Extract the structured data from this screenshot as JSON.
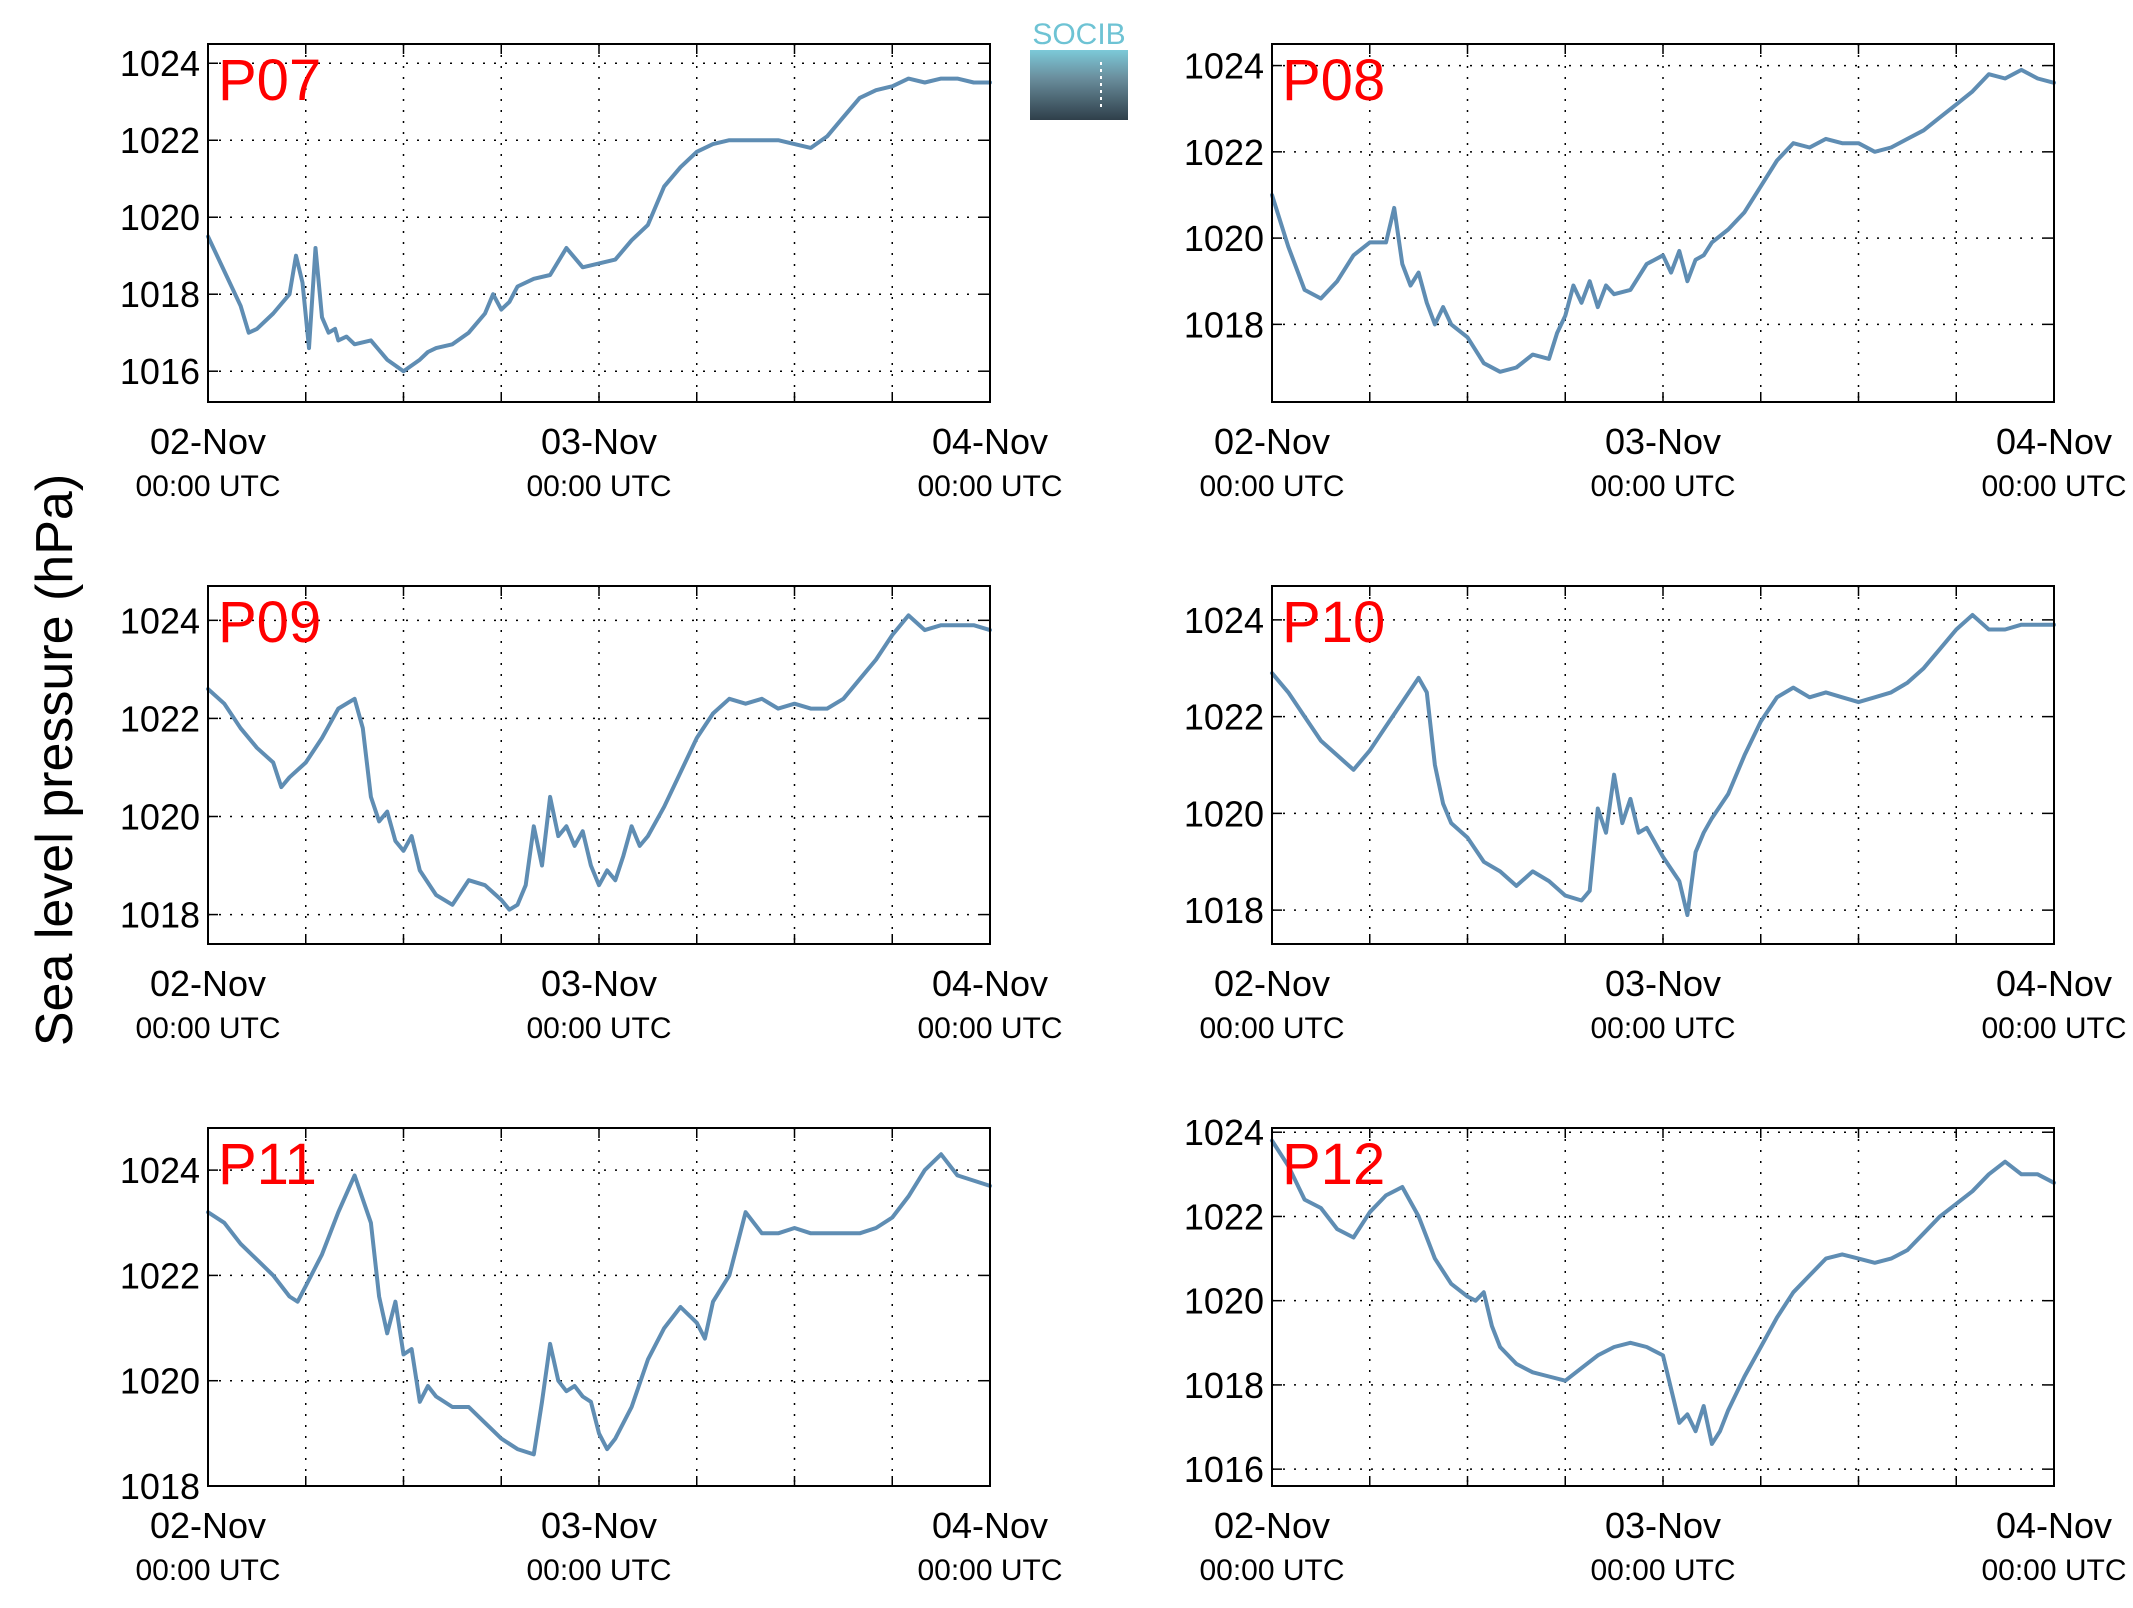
{
  "figure": {
    "ylabel": "Sea level pressure (hPa)",
    "logo_text": "SOCIB",
    "colors": {
      "line": "#5f8db3",
      "panel_label": "#ff0000",
      "axis": "#000000",
      "grid": "#000000",
      "logo_top": "#6ec3d4",
      "logo_bottom": "#2f3f4a"
    }
  },
  "chart_data": [
    {
      "type": "line",
      "panel_label": "P07",
      "x_ticks": [
        {
          "date": "02-Nov",
          "time": "00:00 UTC"
        },
        {
          "date": "03-Nov",
          "time": "00:00 UTC"
        },
        {
          "date": "04-Nov",
          "time": "00:00 UTC"
        }
      ],
      "xlim_hours": [
        0,
        48
      ],
      "y_ticks": [
        1016,
        1018,
        1020,
        1022,
        1024
      ],
      "ylim": [
        1015.2,
        1024.5
      ],
      "grid": true,
      "x_hours": [
        0,
        1,
        2,
        2.5,
        3,
        4,
        5,
        5.4,
        5.8,
        6.2,
        6.6,
        7,
        7.4,
        7.8,
        8,
        8.5,
        9,
        10,
        11,
        12,
        13,
        13.5,
        14,
        15,
        16,
        17,
        17.5,
        18,
        18.5,
        19,
        20,
        21,
        22,
        23,
        24,
        25,
        26,
        27,
        28,
        29,
        30,
        31,
        32,
        33,
        34,
        35,
        36,
        37,
        38,
        39,
        40,
        41,
        42,
        43,
        44,
        45,
        46,
        47,
        48
      ],
      "values": [
        1019.5,
        1018.6,
        1017.7,
        1017.0,
        1017.1,
        1017.5,
        1018.0,
        1019.0,
        1018.3,
        1016.6,
        1019.2,
        1017.4,
        1017.0,
        1017.1,
        1016.8,
        1016.9,
        1016.7,
        1016.8,
        1016.3,
        1016.0,
        1016.3,
        1016.5,
        1016.6,
        1016.7,
        1017.0,
        1017.5,
        1018.0,
        1017.6,
        1017.8,
        1018.2,
        1018.4,
        1018.5,
        1019.2,
        1018.7,
        1018.8,
        1018.9,
        1019.4,
        1019.8,
        1020.8,
        1021.3,
        1021.7,
        1021.9,
        1022.0,
        1022.0,
        1022.0,
        1022.0,
        1021.9,
        1021.8,
        1022.1,
        1022.6,
        1023.1,
        1023.3,
        1023.4,
        1023.6,
        1023.5,
        1023.6,
        1023.6,
        1023.5,
        1023.5
      ]
    },
    {
      "type": "line",
      "panel_label": "P08",
      "x_ticks": [
        {
          "date": "02-Nov",
          "time": "00:00 UTC"
        },
        {
          "date": "03-Nov",
          "time": "00:00 UTC"
        },
        {
          "date": "04-Nov",
          "time": "00:00 UTC"
        }
      ],
      "xlim_hours": [
        0,
        48
      ],
      "y_ticks": [
        1018,
        1020,
        1022,
        1024
      ],
      "ylim": [
        1016.2,
        1024.5
      ],
      "grid": true,
      "x_hours": [
        0,
        1,
        2,
        3,
        4,
        5,
        6,
        7,
        7.5,
        8,
        8.5,
        9,
        9.5,
        10,
        10.5,
        11,
        12,
        13,
        14,
        15,
        16,
        17,
        17.5,
        18,
        18.5,
        19,
        19.5,
        20,
        20.5,
        21,
        22,
        23,
        24,
        24.5,
        25,
        25.5,
        26,
        26.5,
        27,
        28,
        29,
        30,
        31,
        32,
        33,
        34,
        35,
        36,
        37,
        38,
        39,
        40,
        41,
        42,
        43,
        44,
        45,
        46,
        47,
        48
      ],
      "values": [
        1021.0,
        1019.8,
        1018.8,
        1018.6,
        1019.0,
        1019.6,
        1019.9,
        1019.9,
        1020.7,
        1019.4,
        1018.9,
        1019.2,
        1018.5,
        1018.0,
        1018.4,
        1018.0,
        1017.7,
        1017.1,
        1016.9,
        1017.0,
        1017.3,
        1017.2,
        1017.8,
        1018.2,
        1018.9,
        1018.5,
        1019.0,
        1018.4,
        1018.9,
        1018.7,
        1018.8,
        1019.4,
        1019.6,
        1019.2,
        1019.7,
        1019.0,
        1019.5,
        1019.6,
        1019.9,
        1020.2,
        1020.6,
        1021.2,
        1021.8,
        1022.2,
        1022.1,
        1022.3,
        1022.2,
        1022.2,
        1022.0,
        1022.1,
        1022.3,
        1022.5,
        1022.8,
        1023.1,
        1023.4,
        1023.8,
        1023.7,
        1023.9,
        1023.7,
        1023.6
      ]
    },
    {
      "type": "line",
      "panel_label": "P09",
      "x_ticks": [
        {
          "date": "02-Nov",
          "time": "00:00 UTC"
        },
        {
          "date": "03-Nov",
          "time": "00:00 UTC"
        },
        {
          "date": "04-Nov",
          "time": "00:00 UTC"
        }
      ],
      "xlim_hours": [
        0,
        48
      ],
      "y_ticks": [
        1018,
        1020,
        1022,
        1024
      ],
      "ylim": [
        1017.4,
        1024.7
      ],
      "grid": true,
      "x_hours": [
        0,
        1,
        2,
        3,
        4,
        4.5,
        5,
        6,
        7,
        8,
        9,
        9.5,
        10,
        10.5,
        11,
        11.5,
        12,
        12.5,
        13,
        14,
        15,
        16,
        17,
        18,
        18.5,
        19,
        19.5,
        20,
        20.5,
        21,
        21.5,
        22,
        22.5,
        23,
        23.5,
        24,
        24.5,
        25,
        25.5,
        26,
        26.5,
        27,
        28,
        29,
        30,
        31,
        32,
        33,
        34,
        35,
        36,
        37,
        38,
        39,
        40,
        41,
        42,
        43,
        44,
        45,
        46,
        47,
        48
      ],
      "values": [
        1022.6,
        1022.3,
        1021.8,
        1021.4,
        1021.1,
        1020.6,
        1020.8,
        1021.1,
        1021.6,
        1022.2,
        1022.4,
        1021.8,
        1020.4,
        1019.9,
        1020.1,
        1019.5,
        1019.3,
        1019.6,
        1018.9,
        1018.4,
        1018.2,
        1018.7,
        1018.6,
        1018.3,
        1018.1,
        1018.2,
        1018.6,
        1019.8,
        1019.0,
        1020.4,
        1019.6,
        1019.8,
        1019.4,
        1019.7,
        1019.0,
        1018.6,
        1018.9,
        1018.7,
        1019.2,
        1019.8,
        1019.4,
        1019.6,
        1020.2,
        1020.9,
        1021.6,
        1022.1,
        1022.4,
        1022.3,
        1022.4,
        1022.2,
        1022.3,
        1022.2,
        1022.2,
        1022.4,
        1022.8,
        1023.2,
        1023.7,
        1024.1,
        1023.8,
        1023.9,
        1023.9,
        1023.9,
        1023.8
      ]
    },
    {
      "type": "line",
      "panel_label": "P10",
      "x_ticks": [
        {
          "date": "02-Nov",
          "time": "00:00 UTC"
        },
        {
          "date": "03-Nov",
          "time": "00:00 UTC"
        },
        {
          "date": "04-Nov",
          "time": "00:00 UTC"
        }
      ],
      "xlim_hours": [
        0,
        48
      ],
      "y_ticks": [
        1018,
        1020,
        1022,
        1024
      ],
      "ylim": [
        1017.3,
        1024.7
      ],
      "grid": true,
      "x_hours": [
        0,
        1,
        2,
        3,
        4,
        5,
        6,
        7,
        8,
        9,
        9.5,
        10,
        10.5,
        11,
        12,
        13,
        14,
        15,
        16,
        17,
        18,
        19,
        19.5,
        20,
        20.5,
        21,
        21.5,
        22,
        22.5,
        23,
        24,
        25,
        25.5,
        26,
        26.5,
        27,
        28,
        29,
        30,
        31,
        32,
        33,
        34,
        35,
        36,
        37,
        38,
        39,
        40,
        41,
        42,
        43,
        44,
        45,
        46,
        47,
        48
      ],
      "values": [
        1022.9,
        1022.5,
        1022.0,
        1021.5,
        1021.2,
        1020.9,
        1021.3,
        1021.8,
        1022.3,
        1022.8,
        1022.5,
        1021.0,
        1020.2,
        1019.8,
        1019.5,
        1019.0,
        1018.8,
        1018.5,
        1018.8,
        1018.6,
        1018.3,
        1018.2,
        1018.4,
        1020.1,
        1019.6,
        1020.8,
        1019.8,
        1020.3,
        1019.6,
        1019.7,
        1019.1,
        1018.6,
        1017.9,
        1019.2,
        1019.6,
        1019.9,
        1020.4,
        1021.2,
        1021.9,
        1022.4,
        1022.6,
        1022.4,
        1022.5,
        1022.4,
        1022.3,
        1022.4,
        1022.5,
        1022.7,
        1023.0,
        1023.4,
        1023.8,
        1024.1,
        1023.8,
        1023.8,
        1023.9,
        1023.9,
        1023.9
      ]
    },
    {
      "type": "line",
      "panel_label": "P11",
      "x_ticks": [
        {
          "date": "02-Nov",
          "time": "00:00 UTC"
        },
        {
          "date": "03-Nov",
          "time": "00:00 UTC"
        },
        {
          "date": "04-Nov",
          "time": "00:00 UTC"
        }
      ],
      "xlim_hours": [
        0,
        48
      ],
      "y_ticks": [
        1018,
        1020,
        1022,
        1024
      ],
      "ylim": [
        1018.0,
        1024.8
      ],
      "grid": true,
      "x_hours": [
        0,
        1,
        2,
        3,
        4,
        5,
        5.5,
        6,
        7,
        8,
        9,
        10,
        10.5,
        11,
        11.5,
        12,
        12.5,
        13,
        13.5,
        14,
        15,
        16,
        17,
        18,
        19,
        20,
        20.5,
        21,
        21.5,
        22,
        22.5,
        23,
        23.5,
        24,
        24.5,
        25,
        26,
        27,
        28,
        29,
        30,
        30.5,
        31,
        32,
        33,
        34,
        35,
        36,
        37,
        38,
        39,
        40,
        41,
        42,
        43,
        44,
        45,
        46,
        47,
        48
      ],
      "values": [
        1023.2,
        1023.0,
        1022.6,
        1022.3,
        1022.0,
        1021.6,
        1021.5,
        1021.8,
        1022.4,
        1023.2,
        1023.9,
        1023.0,
        1021.6,
        1020.9,
        1021.5,
        1020.5,
        1020.6,
        1019.6,
        1019.9,
        1019.7,
        1019.5,
        1019.5,
        1019.2,
        1018.9,
        1018.7,
        1018.6,
        1019.6,
        1020.7,
        1020.0,
        1019.8,
        1019.9,
        1019.7,
        1019.6,
        1019.0,
        1018.7,
        1018.9,
        1019.5,
        1020.4,
        1021.0,
        1021.4,
        1021.1,
        1020.8,
        1021.5,
        1022.0,
        1023.2,
        1022.8,
        1022.8,
        1022.9,
        1022.8,
        1022.8,
        1022.8,
        1022.8,
        1022.9,
        1023.1,
        1023.5,
        1024.0,
        1024.3,
        1023.9,
        1023.8,
        1023.7
      ]
    },
    {
      "type": "line",
      "panel_label": "P12",
      "x_ticks": [
        {
          "date": "02-Nov",
          "time": "00:00 UTC"
        },
        {
          "date": "03-Nov",
          "time": "00:00 UTC"
        },
        {
          "date": "04-Nov",
          "time": "00:00 UTC"
        }
      ],
      "xlim_hours": [
        0,
        48
      ],
      "y_ticks": [
        1016,
        1018,
        1020,
        1022,
        1024
      ],
      "ylim": [
        1015.6,
        1024.1
      ],
      "grid": true,
      "x_hours": [
        0,
        1,
        2,
        3,
        4,
        5,
        6,
        7,
        8,
        9,
        10,
        11,
        12,
        12.5,
        13,
        13.5,
        14,
        15,
        16,
        17,
        18,
        19,
        20,
        21,
        22,
        23,
        24,
        25,
        25.5,
        26,
        26.5,
        27,
        27.5,
        28,
        29,
        30,
        31,
        32,
        33,
        34,
        35,
        36,
        37,
        38,
        39,
        40,
        41,
        42,
        43,
        44,
        45,
        46,
        47,
        48
      ],
      "values": [
        1023.8,
        1023.2,
        1022.4,
        1022.2,
        1021.7,
        1021.5,
        1022.1,
        1022.5,
        1022.7,
        1022.0,
        1021.0,
        1020.4,
        1020.1,
        1020.0,
        1020.2,
        1019.4,
        1018.9,
        1018.5,
        1018.3,
        1018.2,
        1018.1,
        1018.4,
        1018.7,
        1018.9,
        1019.0,
        1018.9,
        1018.7,
        1017.1,
        1017.3,
        1016.9,
        1017.5,
        1016.6,
        1016.9,
        1017.4,
        1018.2,
        1018.9,
        1019.6,
        1020.2,
        1020.6,
        1021.0,
        1021.1,
        1021.0,
        1020.9,
        1021.0,
        1021.2,
        1021.6,
        1022.0,
        1022.3,
        1022.6,
        1023.0,
        1023.3,
        1023.0,
        1023.0,
        1022.8
      ]
    }
  ]
}
